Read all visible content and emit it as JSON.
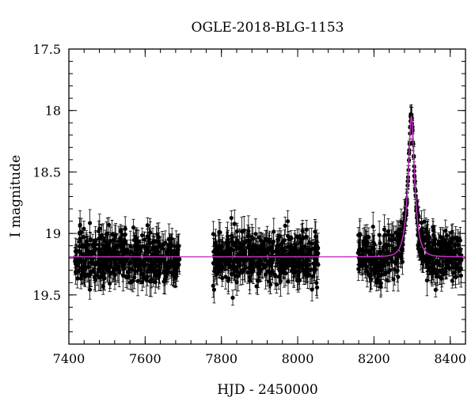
{
  "chart_data": {
    "type": "scatter",
    "title": "OGLE-2018-BLG-1153",
    "xlabel": "HJD - 2450000",
    "ylabel": "I magnitude",
    "xlim": [
      7400,
      8440
    ],
    "ylim": [
      19.9,
      17.5
    ],
    "y_inverted": true,
    "x_ticks": [
      7400,
      7600,
      7800,
      8000,
      8200,
      8400
    ],
    "x_tick_labels": [
      "7400",
      "7600",
      "7800",
      "8000",
      "8200",
      "8400"
    ],
    "y_ticks": [
      17.5,
      18,
      18.5,
      19,
      19.5
    ],
    "y_tick_labels": [
      "17.5",
      "18",
      "18.5",
      "19",
      "19.5"
    ],
    "grid": false,
    "legend": "none",
    "series": [
      {
        "kind": "points-with-errorbars",
        "color": "#000000",
        "seasons": [
          {
            "x_start": 7415,
            "x_end": 7690,
            "mag_mean": 19.19,
            "mag_scatter": 0.17,
            "mag_err": 0.09
          },
          {
            "x_start": 7778,
            "x_end": 8055,
            "mag_mean": 19.19,
            "mag_scatter": 0.17,
            "mag_err": 0.09
          },
          {
            "x_start": 8158,
            "x_end": 8430,
            "mag_mean": 19.19,
            "mag_scatter": 0.17,
            "mag_err": 0.09
          }
        ]
      },
      {
        "kind": "model-line",
        "color": "#cc33cc",
        "baseline_mag": 19.19,
        "peak_time": 8298,
        "peak_mag": 18.05,
        "einstein_time": 16,
        "impact_param": 0.4
      }
    ]
  }
}
